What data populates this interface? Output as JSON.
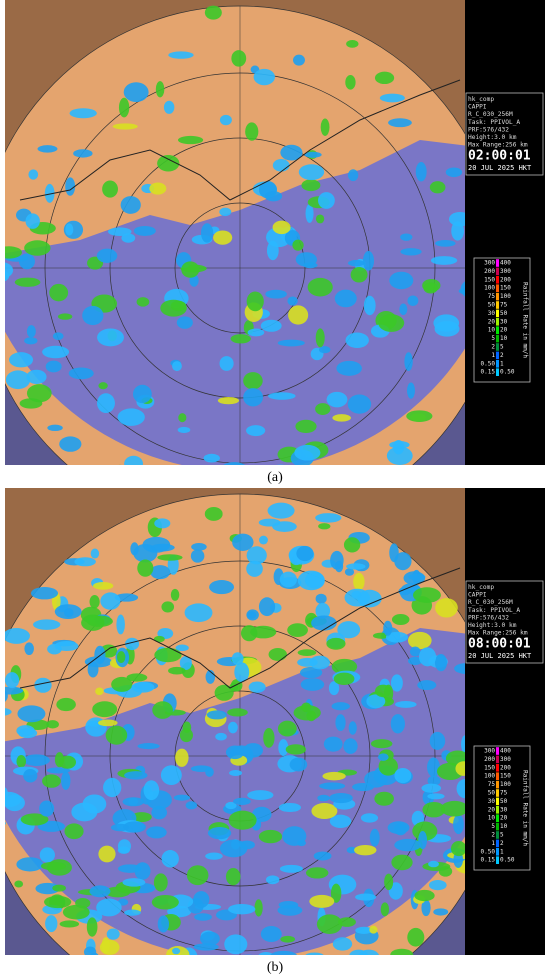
{
  "panels": [
    {
      "label": "(a)",
      "info": [
        "hk_comp",
        "CAPPI",
        "R_C_030_256M",
        "Task: PPIVOL_A",
        "PRF:576/432",
        "Height:3.0 km",
        "Max Range:256 km"
      ],
      "time": "02:00:01",
      "date": "20 JUL 2025 HKT"
    },
    {
      "label": "(b)",
      "info": [
        "hk_comp",
        "CAPPI",
        "R_C_030_256M",
        "Task: PPIVOL_A",
        "PRF:576/432",
        "Height:3.0 km",
        "Max Range:256 km"
      ],
      "time": "08:00:01",
      "date": "20 JUL 2025 HKT"
    }
  ],
  "legend": {
    "title": "Rainfall Rate in mm/h",
    "rows": [
      {
        "low": "300",
        "high": "400",
        "color": "#ff00ff"
      },
      {
        "low": "200",
        "high": "300",
        "color": "#c80050"
      },
      {
        "low": "150",
        "high": "200",
        "color": "#ff0000"
      },
      {
        "low": "100",
        "high": "150",
        "color": "#ff5a00"
      },
      {
        "low": "75",
        "high": "100",
        "color": "#ff9600"
      },
      {
        "low": "50",
        "high": "75",
        "color": "#ffc800"
      },
      {
        "low": "30",
        "high": "50",
        "color": "#ffff00"
      },
      {
        "low": "20",
        "high": "30",
        "color": "#a0f000"
      },
      {
        "low": "10",
        "high": "20",
        "color": "#00e600"
      },
      {
        "low": "5",
        "high": "10",
        "color": "#00b400"
      },
      {
        "low": "2",
        "high": "5",
        "color": "#008c3c"
      },
      {
        "low": "1",
        "high": "2",
        "color": "#0064ff"
      },
      {
        "low": "0.50",
        "high": "1",
        "color": "#0096ff"
      },
      {
        "low": "0.15",
        "high": "0.50",
        "color": "#00c8ff"
      }
    ]
  }
}
